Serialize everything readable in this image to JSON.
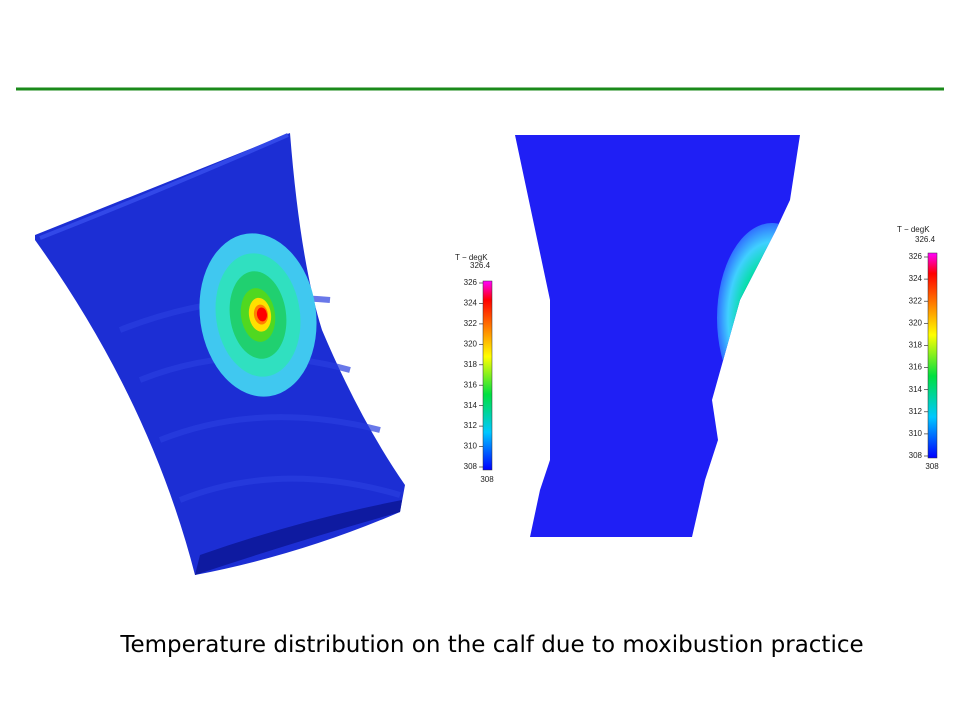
{
  "caption": "Temperature distribution on the calf due to moxibustion practice",
  "legends": [
    {
      "title": "T − degK",
      "max": "326.4",
      "ticks": [
        "326",
        "324",
        "322",
        "320",
        "318",
        "316",
        "314",
        "312",
        "310",
        "308"
      ],
      "min": "308"
    },
    {
      "title": "T − degK",
      "max": "326.4",
      "ticks": [
        "326",
        "324",
        "322",
        "320",
        "318",
        "316",
        "314",
        "312",
        "310",
        "308"
      ],
      "min": "308"
    }
  ]
}
